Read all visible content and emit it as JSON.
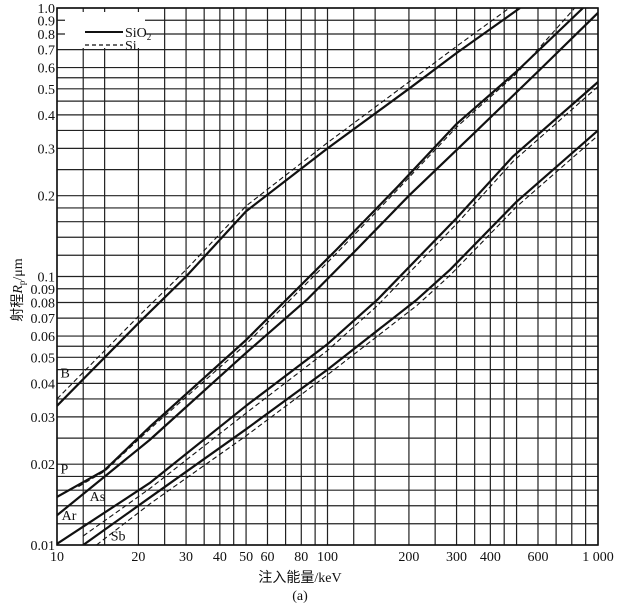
{
  "chart_data": {
    "type": "line",
    "title": "",
    "caption": "(a)",
    "xlabel": "注入能量/keV",
    "ylabel_prefix": "射程",
    "ylabel_symbol": "R",
    "ylabel_sub": "p",
    "ylabel_unit": "/μm",
    "x_scale": "log",
    "y_scale": "log",
    "xlim": [
      10,
      1000
    ],
    "ylim": [
      0.01,
      1.0
    ],
    "grid": true,
    "legend_position": "top-left",
    "legend": [
      {
        "label": "SiO",
        "sub": "2",
        "style": "solid"
      },
      {
        "label": "Si",
        "sub": "",
        "style": "dashed"
      }
    ],
    "x_tick_labels": [
      {
        "v": 10,
        "t": "10"
      },
      {
        "v": 20,
        "t": "20"
      },
      {
        "v": 30,
        "t": "30"
      },
      {
        "v": 40,
        "t": "40"
      },
      {
        "v": 50,
        "t": "50"
      },
      {
        "v": 60,
        "t": "60"
      },
      {
        "v": 80,
        "t": "80"
      },
      {
        "v": 100,
        "t": "100"
      },
      {
        "v": 200,
        "t": "200"
      },
      {
        "v": 300,
        "t": "300"
      },
      {
        "v": 400,
        "t": "400"
      },
      {
        "v": 600,
        "t": "600"
      },
      {
        "v": 1000,
        "t": "1 000"
      }
    ],
    "y_tick_labels": [
      {
        "v": 0.01,
        "t": "0.01"
      },
      {
        "v": 0.02,
        "t": "0.02"
      },
      {
        "v": 0.03,
        "t": "0.03"
      },
      {
        "v": 0.04,
        "t": "0.04"
      },
      {
        "v": 0.05,
        "t": "0.05"
      },
      {
        "v": 0.06,
        "t": "0.06"
      },
      {
        "v": 0.07,
        "t": "0.07"
      },
      {
        "v": 0.08,
        "t": "0.08"
      },
      {
        "v": 0.09,
        "t": "0.09"
      },
      {
        "v": 0.1,
        "t": "0.1"
      },
      {
        "v": 0.2,
        "t": "0.2"
      },
      {
        "v": 0.3,
        "t": "0.3"
      },
      {
        "v": 0.4,
        "t": "0.4"
      },
      {
        "v": 0.5,
        "t": "0.5"
      },
      {
        "v": 0.6,
        "t": "0.6"
      },
      {
        "v": 0.7,
        "t": "0.7"
      },
      {
        "v": 0.8,
        "t": "0.8"
      },
      {
        "v": 0.9,
        "t": "0.9"
      },
      {
        "v": 1.0,
        "t": "1.0"
      }
    ],
    "series": [
      {
        "name": "B",
        "material": "SiO2",
        "style": "solid",
        "x": [
          10,
          20,
          30,
          50,
          100,
          200,
          300,
          515
        ],
        "y": [
          0.033,
          0.067,
          0.1,
          0.175,
          0.3,
          0.5,
          0.68,
          1.0
        ]
      },
      {
        "name": "B",
        "material": "Si",
        "style": "dashed",
        "x": [
          10,
          20,
          30,
          50,
          100,
          200,
          300,
          470
        ],
        "y": [
          0.035,
          0.071,
          0.106,
          0.183,
          0.315,
          0.53,
          0.72,
          1.0
        ]
      },
      {
        "name": "P",
        "material": "SiO2",
        "style": "solid",
        "x": [
          10,
          15,
          22,
          50,
          108,
          181,
          300,
          500,
          880
        ],
        "y": [
          0.0151,
          0.019,
          0.0275,
          0.058,
          0.126,
          0.215,
          0.37,
          0.58,
          1.0
        ]
      },
      {
        "name": "P",
        "material": "Si",
        "style": "dashed",
        "x": [
          12,
          15,
          22,
          50,
          108,
          181,
          300,
          500,
          820
        ],
        "y": [
          0.0165,
          0.0188,
          0.027,
          0.056,
          0.122,
          0.21,
          0.36,
          0.57,
          1.0
        ]
      },
      {
        "name": "Ar",
        "material": "SiO2",
        "style": "solid",
        "x": [
          10,
          22,
          50,
          84,
          128,
          200,
          357,
          600,
          1000
        ],
        "y": [
          0.0129,
          0.0246,
          0.052,
          0.082,
          0.126,
          0.2,
          0.35,
          0.58,
          0.96
        ]
      },
      {
        "name": "As",
        "material": "SiO2",
        "style": "solid",
        "x": [
          10,
          22,
          50,
          100,
          153,
          300,
          485,
          1000
        ],
        "y": [
          0.0101,
          0.017,
          0.033,
          0.056,
          0.082,
          0.165,
          0.28,
          0.53
        ]
      },
      {
        "name": "As",
        "material": "Si",
        "style": "dashed",
        "x": [
          12.5,
          22,
          50,
          100,
          153,
          300,
          485,
          1000
        ],
        "y": [
          0.0108,
          0.0162,
          0.031,
          0.053,
          0.078,
          0.157,
          0.268,
          0.51
        ]
      },
      {
        "name": "Sb",
        "material": "SiO2",
        "style": "solid",
        "x": [
          12.5,
          22,
          50,
          100,
          214,
          284,
          500,
          1000
        ],
        "y": [
          0.01,
          0.015,
          0.027,
          0.045,
          0.082,
          0.106,
          0.19,
          0.35
        ]
      },
      {
        "name": "Sb",
        "material": "Si",
        "style": "dashed",
        "x": [
          14,
          22,
          50,
          100,
          214,
          284,
          500,
          1000
        ],
        "y": [
          0.01,
          0.0142,
          0.0255,
          0.043,
          0.078,
          0.101,
          0.182,
          0.335
        ]
      }
    ],
    "annotations": [
      {
        "text": "B",
        "x": 10.3,
        "y": 0.042
      },
      {
        "text": "P",
        "x": 10.3,
        "y": 0.0185
      },
      {
        "text": "As",
        "x": 13.2,
        "y": 0.0146
      },
      {
        "text": "Ar",
        "x": 10.4,
        "y": 0.0124
      },
      {
        "text": "Sb",
        "x": 15.8,
        "y": 0.0104
      }
    ]
  }
}
